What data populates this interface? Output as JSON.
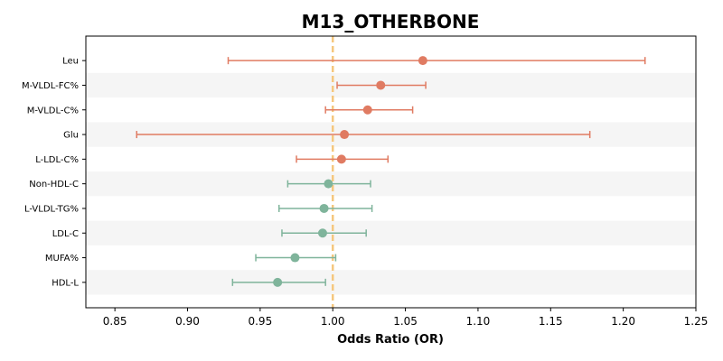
{
  "chart_data": {
    "type": "scatter",
    "subtype": "forest-plot",
    "title": "M13_OTHERBONE",
    "xlabel": "Odds Ratio (OR)",
    "ylabel": "",
    "xlim": [
      0.83,
      1.25
    ],
    "xticks": [
      0.85,
      0.9,
      0.95,
      1.0,
      1.05,
      1.1,
      1.15,
      1.2,
      1.25
    ],
    "xtick_labels": [
      "0.85",
      "0.90",
      "0.95",
      "1.00",
      "1.05",
      "1.10",
      "1.15",
      "1.20",
      "1.25"
    ],
    "reference_line": 1.0,
    "grid": false,
    "row_banding": true,
    "colors": {
      "positive": "#e07b62",
      "negative": "#7fb49b",
      "reference": "#f5c77e",
      "band": "#f5f5f5"
    },
    "rows": [
      {
        "label": "Leu",
        "or": 1.062,
        "lower": 0.928,
        "upper": 1.215,
        "group": "positive"
      },
      {
        "label": "M-VLDL-FC%",
        "or": 1.033,
        "lower": 1.003,
        "upper": 1.064,
        "group": "positive"
      },
      {
        "label": "M-VLDL-C%",
        "or": 1.024,
        "lower": 0.995,
        "upper": 1.055,
        "group": "positive"
      },
      {
        "label": "Glu",
        "or": 1.008,
        "lower": 0.865,
        "upper": 1.177,
        "group": "positive"
      },
      {
        "label": "L-LDL-C%",
        "or": 1.006,
        "lower": 0.975,
        "upper": 1.038,
        "group": "positive"
      },
      {
        "label": "Non-HDL-C",
        "or": 0.997,
        "lower": 0.969,
        "upper": 1.026,
        "group": "negative"
      },
      {
        "label": "L-VLDL-TG%",
        "or": 0.994,
        "lower": 0.963,
        "upper": 1.027,
        "group": "negative"
      },
      {
        "label": "LDL-C",
        "or": 0.993,
        "lower": 0.965,
        "upper": 1.023,
        "group": "negative"
      },
      {
        "label": "MUFA%",
        "or": 0.974,
        "lower": 0.947,
        "upper": 1.002,
        "group": "negative"
      },
      {
        "label": "HDL-L",
        "or": 0.962,
        "lower": 0.931,
        "upper": 0.995,
        "group": "negative"
      }
    ]
  }
}
